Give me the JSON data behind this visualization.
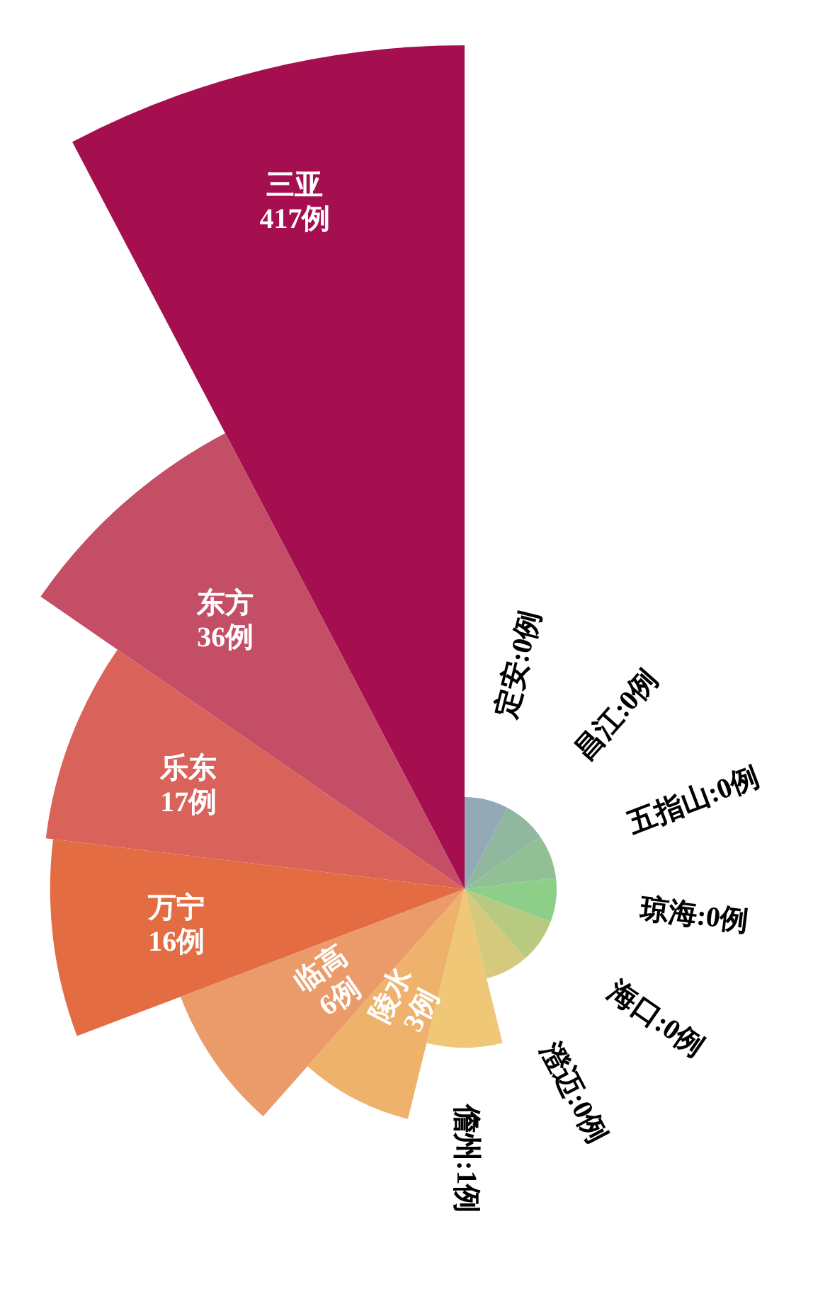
{
  "chart_data": {
    "type": "other",
    "categories": [
      "三亚",
      "东方",
      "乐东",
      "万宁",
      "临高",
      "陵水",
      "儋州",
      "澄迈",
      "海口",
      "琼海",
      "五指山",
      "昌江",
      "定安"
    ],
    "values": [
      417,
      36,
      17,
      16,
      6,
      3,
      1,
      0,
      0,
      0,
      0,
      0,
      0
    ],
    "value_labels": [
      "417例",
      "36例",
      "17例",
      "16例",
      "6例",
      "3例",
      ":1例",
      ":0例",
      ":0例",
      ":0例",
      ":0例",
      ":0例",
      ":0例"
    ],
    "colors": [
      "#a50f4f",
      "#c44e66",
      "#d9625a",
      "#e36c42",
      "#eb9b69",
      "#eeb26c",
      "#f0c677",
      "#d4c97c",
      "#b7ca80",
      "#8dcf88",
      "#90c093",
      "#8fb89f",
      "#93a9b6"
    ],
    "data_labels": true
  }
}
